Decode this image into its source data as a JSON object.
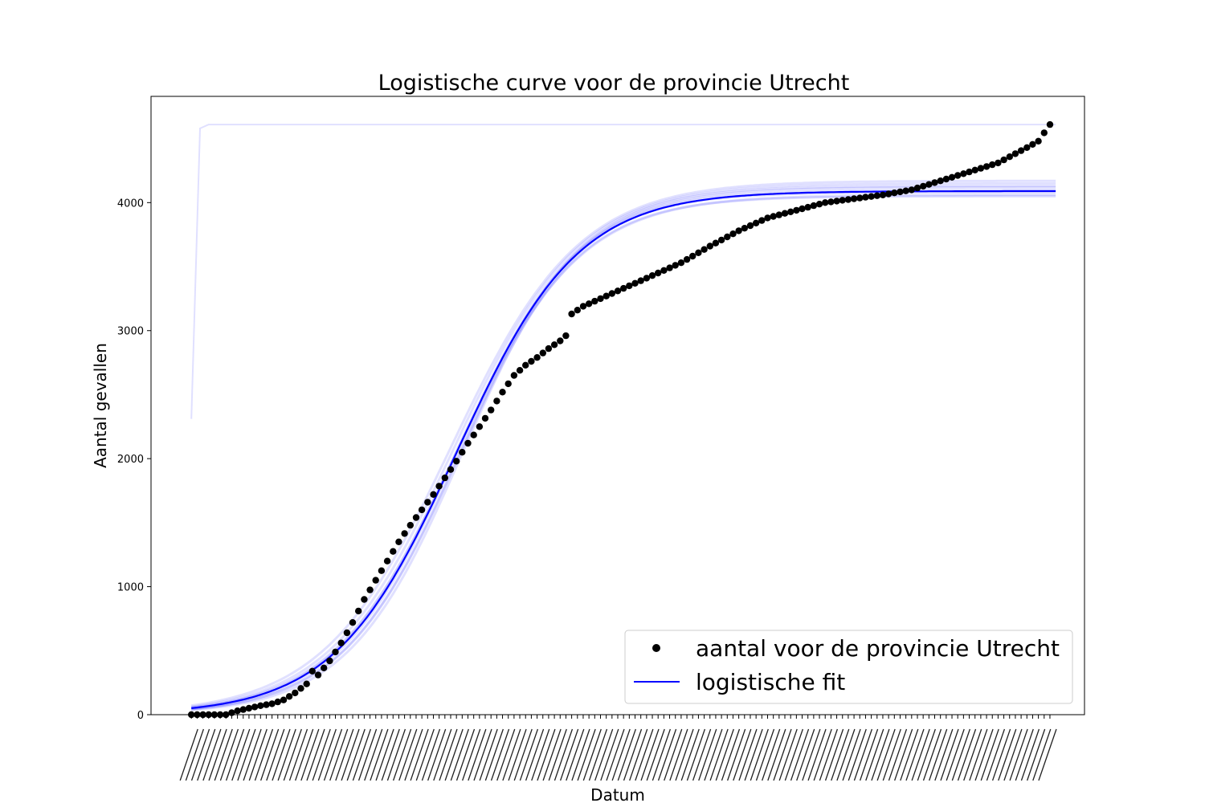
{
  "chart_data": {
    "type": "scatter",
    "title": "Logistische curve voor de provincie Utrecht",
    "xlabel": "Datum",
    "ylabel": "Aantal gevallen",
    "x_first_day": 0,
    "x_last_day": 149,
    "x_range": [
      -7,
      155
    ],
    "ylim": [
      0,
      4830
    ],
    "yticks": [
      0,
      1000,
      2000,
      3000,
      4000
    ],
    "x_tick_labels_visible": false,
    "grid": false,
    "legend": {
      "position": "lower-right",
      "entries": [
        "aantal voor de provincie Utrecht",
        "logistische fit"
      ]
    },
    "colors": {
      "observed": "#000000",
      "fit": "#0000ff"
    },
    "series": [
      {
        "name": "aantal voor de provincie Utrecht",
        "kind": "scatter",
        "points": [
          [
            0,
            0
          ],
          [
            6,
            0
          ],
          [
            7,
            15
          ],
          [
            8,
            30
          ],
          [
            10,
            50
          ],
          [
            12,
            70
          ],
          [
            14,
            85
          ],
          [
            16,
            115
          ],
          [
            18,
            170
          ],
          [
            20,
            240
          ],
          [
            21,
            340
          ],
          [
            22,
            310
          ],
          [
            24,
            420
          ],
          [
            26,
            560
          ],
          [
            28,
            720
          ],
          [
            30,
            900
          ],
          [
            32,
            1050
          ],
          [
            34,
            1200
          ],
          [
            36,
            1350
          ],
          [
            38,
            1480
          ],
          [
            40,
            1600
          ],
          [
            42,
            1720
          ],
          [
            44,
            1850
          ],
          [
            46,
            1980
          ],
          [
            48,
            2120
          ],
          [
            50,
            2250
          ],
          [
            52,
            2380
          ],
          [
            54,
            2520
          ],
          [
            56,
            2650
          ],
          [
            58,
            2730
          ],
          [
            60,
            2790
          ],
          [
            62,
            2860
          ],
          [
            64,
            2920
          ],
          [
            65,
            2960
          ],
          [
            66,
            3130
          ],
          [
            68,
            3190
          ],
          [
            70,
            3230
          ],
          [
            75,
            3330
          ],
          [
            80,
            3430
          ],
          [
            85,
            3530
          ],
          [
            90,
            3660
          ],
          [
            95,
            3780
          ],
          [
            100,
            3880
          ],
          [
            105,
            3940
          ],
          [
            110,
            4000
          ],
          [
            115,
            4030
          ],
          [
            120,
            4060
          ],
          [
            125,
            4100
          ],
          [
            130,
            4170
          ],
          [
            135,
            4240
          ],
          [
            140,
            4310
          ],
          [
            145,
            4430
          ],
          [
            147,
            4480
          ],
          [
            149,
            4610
          ]
        ]
      },
      {
        "name": "logistische fit",
        "kind": "line",
        "logistic_params": {
          "K": 4090,
          "r": 0.095,
          "t0": 46
        },
        "uncertainty_curves": [
          {
            "K": 4150,
            "r": 0.092,
            "t0": 45.5
          },
          {
            "K": 4050,
            "r": 0.098,
            "t0": 46.5
          },
          {
            "K": 4120,
            "r": 0.094,
            "t0": 46
          },
          {
            "K": 4080,
            "r": 0.1,
            "t0": 47
          },
          {
            "K": 4170,
            "r": 0.09,
            "t0": 45
          },
          {
            "K": 4100,
            "r": 0.096,
            "t0": 46.2
          },
          {
            "K": 4060,
            "r": 0.093,
            "t0": 45.8
          },
          {
            "K": 4130,
            "r": 0.097,
            "t0": 46.8
          }
        ],
        "outlier_curve": [
          [
            0,
            2310
          ],
          [
            1.5,
            4580
          ],
          [
            3,
            4610
          ],
          [
            150,
            4610
          ]
        ]
      }
    ]
  }
}
